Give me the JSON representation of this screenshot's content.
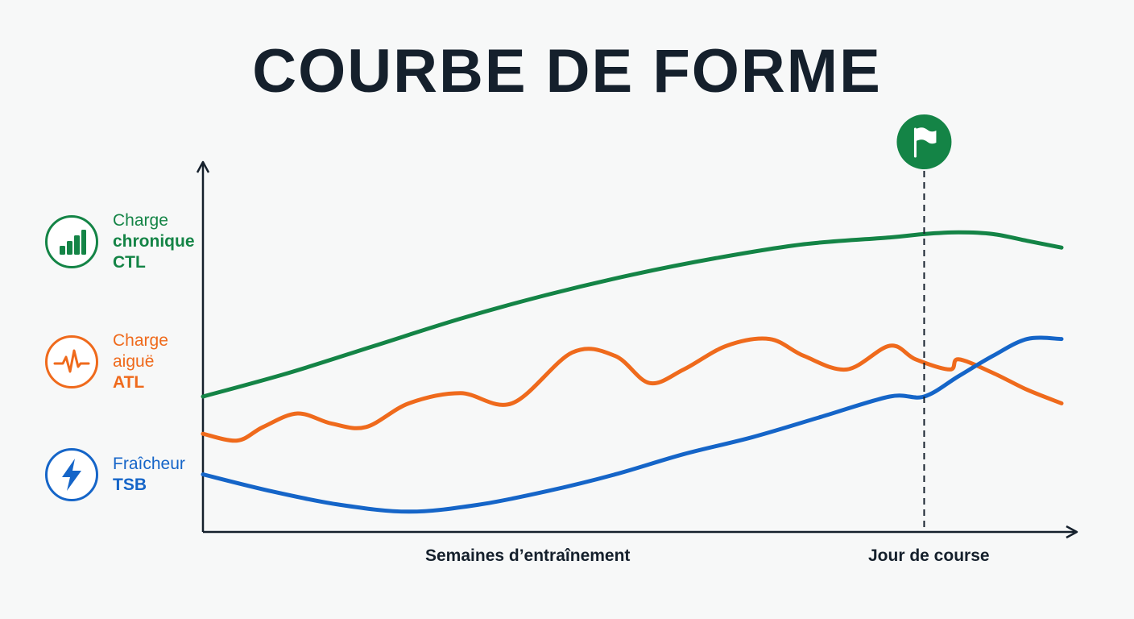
{
  "title": "COURBE DE FORME",
  "legend": {
    "ctl": {
      "line1": "Charge",
      "line2": "chronique",
      "line3": "CTL",
      "icon": "bar-chart-icon",
      "color": "#148446"
    },
    "atl": {
      "line1": "Charge",
      "line2": "aiguë",
      "line3": "ATL",
      "icon": "heartbeat-icon",
      "color": "#ef6a1c"
    },
    "tsb": {
      "line1": "Fraîcheur",
      "line2": "TSB",
      "icon": "lightning-icon",
      "color": "#1565c8"
    }
  },
  "race_marker_icon": "flag-icon",
  "colors": {
    "marker": "#148446",
    "axis": "#15202c"
  },
  "chart_data": {
    "type": "line",
    "title": "COURBE DE FORME",
    "xlabel": "Semaines d’entraînement",
    "x_annotation": "Jour de course",
    "race_day_x": 84,
    "xlim": [
      0,
      100
    ],
    "ylim": [
      0,
      100
    ],
    "grid": false,
    "legend_position": "left",
    "series": [
      {
        "key": "ctl",
        "name": "CTL",
        "color": "#148446",
        "points": [
          [
            0,
            40
          ],
          [
            10,
            47
          ],
          [
            20,
            55
          ],
          [
            30,
            63
          ],
          [
            40,
            70
          ],
          [
            50,
            76
          ],
          [
            60,
            81
          ],
          [
            70,
            85
          ],
          [
            80,
            87
          ],
          [
            84,
            88
          ],
          [
            88,
            88.5
          ],
          [
            92,
            88
          ],
          [
            96,
            86
          ],
          [
            100,
            84
          ]
        ]
      },
      {
        "key": "atl",
        "name": "ATL",
        "color": "#ef6a1c",
        "points": [
          [
            0,
            29
          ],
          [
            4,
            27
          ],
          [
            7,
            31
          ],
          [
            11,
            35
          ],
          [
            15,
            32
          ],
          [
            19,
            31
          ],
          [
            24,
            38
          ],
          [
            30,
            41
          ],
          [
            36,
            38
          ],
          [
            43,
            53
          ],
          [
            48,
            52
          ],
          [
            52,
            44
          ],
          [
            56,
            48
          ],
          [
            61,
            55
          ],
          [
            66,
            57
          ],
          [
            70,
            52
          ],
          [
            75,
            48
          ],
          [
            80,
            55
          ],
          [
            83,
            51
          ],
          [
            87,
            48
          ],
          [
            88,
            51
          ],
          [
            92,
            47
          ],
          [
            96,
            42
          ],
          [
            100,
            38
          ]
        ]
      },
      {
        "key": "tsb",
        "name": "TSB",
        "color": "#1565c8",
        "points": [
          [
            0,
            17
          ],
          [
            8,
            12
          ],
          [
            16,
            8
          ],
          [
            24,
            6
          ],
          [
            32,
            8
          ],
          [
            40,
            12
          ],
          [
            48,
            17
          ],
          [
            56,
            23
          ],
          [
            64,
            28
          ],
          [
            72,
            34
          ],
          [
            80,
            40
          ],
          [
            84,
            40
          ],
          [
            88,
            46
          ],
          [
            92,
            52
          ],
          [
            96,
            57
          ],
          [
            100,
            57
          ]
        ]
      }
    ]
  }
}
